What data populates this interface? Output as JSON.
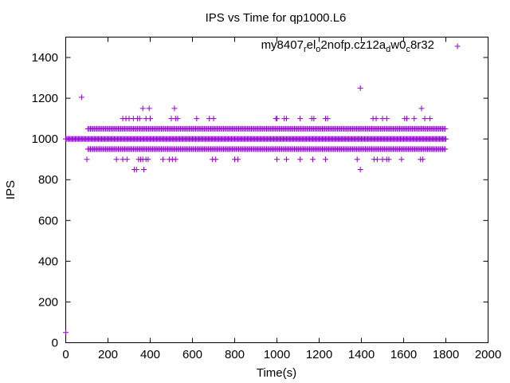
{
  "chart_data": {
    "type": "scatter",
    "title": "IPS vs Time for qp1000.L6",
    "xlabel": "Time(s)",
    "ylabel": "IPS",
    "xlim": [
      0,
      2000
    ],
    "ylim": [
      0,
      1500
    ],
    "x_ticks": [
      "0",
      "200",
      "400",
      "600",
      "800",
      "1000",
      "1200",
      "1400",
      "1600",
      "1800",
      "2000"
    ],
    "y_ticks": [
      "0",
      "200",
      "400",
      "600",
      "800",
      "1000",
      "1200",
      "1400"
    ],
    "x_tick_values": [
      0,
      200,
      400,
      600,
      800,
      1000,
      1200,
      1400,
      1600,
      1800,
      2000
    ],
    "y_tick_values": [
      0,
      200,
      400,
      600,
      800,
      1000,
      1200,
      1400
    ],
    "grid": false,
    "legend_position": "top-right",
    "marker": "plus",
    "series": [
      {
        "name": "my8407_rel_o2nofp.cz12a_dw0_c8r32",
        "legend_parts": [
          {
            "text": "my8407",
            "sub": false
          },
          {
            "text": "r",
            "sub": true
          },
          {
            "text": "el",
            "sub": false
          },
          {
            "text": "o",
            "sub": true
          },
          {
            "text": "2nofp.cz12a",
            "sub": false
          },
          {
            "text": "d",
            "sub": true
          },
          {
            "text": "w0",
            "sub": false
          },
          {
            "text": "c",
            "sub": true
          },
          {
            "text": "8r32",
            "sub": false
          }
        ],
        "color": "#9400d3",
        "bands": [
          {
            "y": 1000,
            "from": 0,
            "to": 1800,
            "step": 5
          },
          {
            "y": 950,
            "from": 105,
            "to": 1800,
            "step": 6
          },
          {
            "y": 1050,
            "from": 105,
            "to": 1800,
            "step": 6
          }
        ],
        "points": [
          [
            0,
            50
          ],
          [
            75,
            1205
          ],
          [
            100,
            900
          ],
          [
            240,
            900
          ],
          [
            270,
            900
          ],
          [
            290,
            900
          ],
          [
            270,
            1100
          ],
          [
            285,
            1100
          ],
          [
            300,
            1100
          ],
          [
            320,
            1100
          ],
          [
            340,
            1100
          ],
          [
            350,
            1100
          ],
          [
            365,
            1150
          ],
          [
            380,
            1100
          ],
          [
            395,
            1150
          ],
          [
            400,
            1100
          ],
          [
            325,
            850
          ],
          [
            335,
            850
          ],
          [
            370,
            850
          ],
          [
            345,
            900
          ],
          [
            355,
            900
          ],
          [
            365,
            900
          ],
          [
            380,
            900
          ],
          [
            390,
            900
          ],
          [
            460,
            900
          ],
          [
            490,
            900
          ],
          [
            505,
            900
          ],
          [
            520,
            900
          ],
          [
            500,
            1100
          ],
          [
            515,
            1150
          ],
          [
            520,
            1100
          ],
          [
            530,
            1100
          ],
          [
            620,
            1100
          ],
          [
            680,
            1100
          ],
          [
            700,
            1100
          ],
          [
            695,
            900
          ],
          [
            710,
            900
          ],
          [
            800,
            900
          ],
          [
            815,
            900
          ],
          [
            995,
            1100
          ],
          [
            1000,
            1100
          ],
          [
            1035,
            1100
          ],
          [
            1045,
            1100
          ],
          [
            1110,
            1100
          ],
          [
            1165,
            1100
          ],
          [
            1175,
            1100
          ],
          [
            1230,
            1100
          ],
          [
            1240,
            1100
          ],
          [
            1000,
            900
          ],
          [
            1045,
            900
          ],
          [
            1110,
            900
          ],
          [
            1170,
            900
          ],
          [
            1230,
            900
          ],
          [
            1395,
            1250
          ],
          [
            1395,
            850
          ],
          [
            1380,
            900
          ],
          [
            1455,
            1100
          ],
          [
            1470,
            1100
          ],
          [
            1500,
            1100
          ],
          [
            1520,
            1100
          ],
          [
            1460,
            900
          ],
          [
            1475,
            900
          ],
          [
            1500,
            900
          ],
          [
            1520,
            900
          ],
          [
            1530,
            900
          ],
          [
            1605,
            1100
          ],
          [
            1615,
            1100
          ],
          [
            1650,
            1100
          ],
          [
            1685,
            1150
          ],
          [
            1700,
            1100
          ],
          [
            1725,
            1100
          ],
          [
            1590,
            900
          ],
          [
            1680,
            900
          ],
          [
            1690,
            900
          ]
        ]
      }
    ],
    "legend_marker_point": [
      1855,
      1455
    ]
  }
}
